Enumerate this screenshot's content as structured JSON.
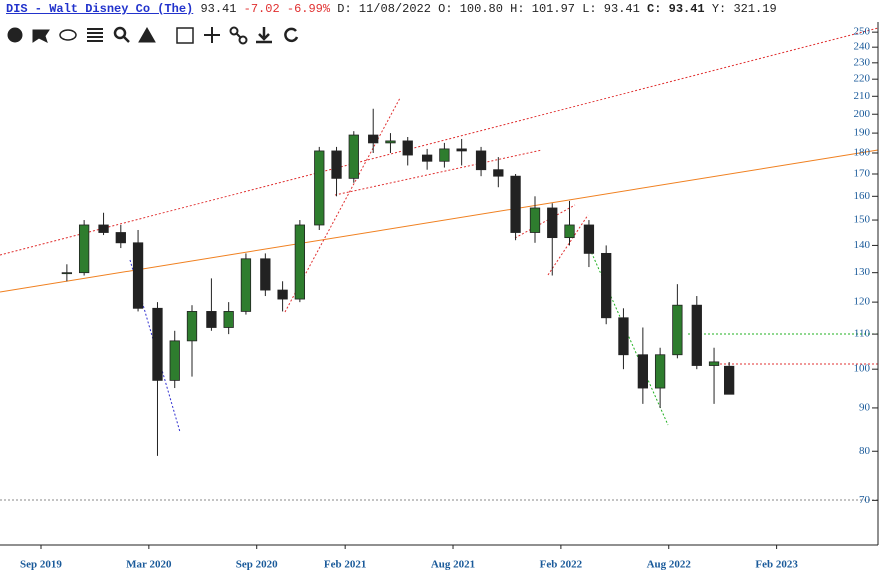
{
  "header": {
    "symbol": "DIS - Walt Disney Co (The)",
    "last": "93.41",
    "change": "-7.02",
    "change_pct": "-6.99%",
    "fields": [
      {
        "label": "D:",
        "value": "11/08/2022"
      },
      {
        "label": "O:",
        "value": "100.80"
      },
      {
        "label": "H:",
        "value": "101.97"
      },
      {
        "label": "L:",
        "value": "93.41"
      },
      {
        "label": "C:",
        "value": "93.41"
      },
      {
        "label": "Y:",
        "value": "321.19"
      }
    ]
  },
  "chart_data": {
    "type": "candlestick",
    "log_scale": true,
    "up_color": "#2e7d2e",
    "down_color": "#222222",
    "x": [
      2019.79,
      2019.87,
      2019.96,
      2020.04,
      2020.12,
      2020.21,
      2020.29,
      2020.37,
      2020.46,
      2020.54,
      2020.62,
      2020.71,
      2020.79,
      2020.87,
      2020.96,
      2021.04,
      2021.12,
      2021.21,
      2021.29,
      2021.37,
      2021.46,
      2021.54,
      2021.62,
      2021.71,
      2021.79,
      2021.87,
      2021.96,
      2022.04,
      2022.12,
      2022.21,
      2022.29,
      2022.37,
      2022.46,
      2022.54,
      2022.62,
      2022.71,
      2022.79,
      2022.86
    ],
    "open": [
      130,
      130,
      148,
      145,
      141,
      118,
      97,
      108,
      117,
      112,
      117,
      135,
      124,
      121,
      148,
      181,
      168,
      189,
      185,
      186,
      179,
      176,
      182,
      181,
      172,
      169,
      145,
      155,
      143,
      148,
      137,
      115,
      104,
      95,
      104,
      119,
      101,
      100.8
    ],
    "high": [
      133,
      150,
      153,
      148,
      146,
      120,
      111,
      119,
      128,
      120,
      137,
      137,
      127,
      150,
      183,
      183,
      191,
      203,
      190,
      188,
      182,
      185,
      187,
      183,
      178,
      170,
      160,
      157,
      158,
      150,
      140,
      118,
      112,
      106,
      126,
      122,
      106,
      101.97
    ],
    "low": [
      127,
      129,
      144,
      139,
      117,
      79,
      95,
      98,
      111,
      110,
      116,
      122,
      117,
      120,
      146,
      160,
      166,
      180,
      180,
      174,
      172,
      173,
      174,
      169,
      164,
      142,
      141,
      129,
      140,
      132,
      113,
      100,
      91,
      90,
      103,
      100,
      91,
      93.41
    ],
    "close": [
      130,
      148,
      145,
      141,
      118,
      97,
      108,
      117,
      112,
      117,
      135,
      124,
      121,
      148,
      181,
      168,
      189,
      185,
      186,
      179,
      176,
      182,
      181,
      172,
      169,
      145,
      155,
      143,
      148,
      137,
      115,
      104,
      95,
      104,
      119,
      101,
      102,
      93.41
    ],
    "xlim": [
      2019.48,
      2023.55
    ],
    "xticks": [
      {
        "value": 2019.67,
        "label": "Sep 2019"
      },
      {
        "value": 2020.17,
        "label": "Mar 2020"
      },
      {
        "value": 2020.67,
        "label": "Sep 2020"
      },
      {
        "value": 2021.08,
        "label": "Feb 2021"
      },
      {
        "value": 2021.58,
        "label": "Aug 2021"
      },
      {
        "value": 2022.08,
        "label": "Feb 2022"
      },
      {
        "value": 2022.58,
        "label": "Aug 2022"
      },
      {
        "value": 2023.08,
        "label": "Feb 2023"
      }
    ],
    "ylim": [
      62,
      257
    ],
    "yticks": [
      70,
      80,
      90,
      100,
      110,
      120,
      130,
      140,
      150,
      160,
      170,
      180,
      190,
      200,
      210,
      220,
      230,
      240,
      250
    ]
  }
}
